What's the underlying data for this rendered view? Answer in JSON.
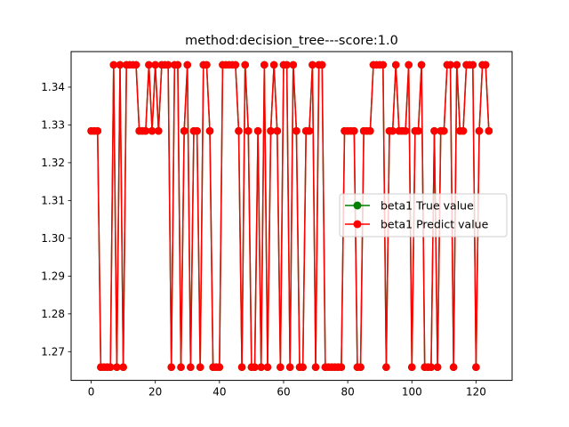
{
  "chart_data": {
    "type": "line",
    "title": "method:decision_tree---score:1.0",
    "xlabel": "",
    "ylabel": "",
    "xlim": [
      -6.25,
      131.25
    ],
    "ylim": [
      1.2624,
      1.3494
    ],
    "xticks": [
      0,
      20,
      40,
      60,
      80,
      100,
      120
    ],
    "yticks": [
      1.27,
      1.28,
      1.29,
      1.3,
      1.31,
      1.32,
      1.33,
      1.34
    ],
    "grid": false,
    "legend_position": "center-right",
    "series": [
      {
        "name": "beta1 True value",
        "color": "#008000",
        "marker": "circle",
        "values": [
          1.3284,
          1.3284,
          1.3284,
          1.2659,
          1.2659,
          1.2659,
          1.2659,
          1.3459,
          1.2659,
          1.3459,
          1.2659,
          1.3459,
          1.3459,
          1.3459,
          1.3459,
          1.3284,
          1.3284,
          1.3284,
          1.3459,
          1.3284,
          1.3459,
          1.3284,
          1.3459,
          1.3459,
          1.3459,
          1.2659,
          1.3459,
          1.3459,
          1.2659,
          1.3284,
          1.3459,
          1.2659,
          1.3284,
          1.3284,
          1.2659,
          1.3459,
          1.3459,
          1.3284,
          1.2659,
          1.2659,
          1.2659,
          1.3459,
          1.3459,
          1.3459,
          1.3459,
          1.3459,
          1.3284,
          1.2659,
          1.3459,
          1.3284,
          1.2659,
          1.2659,
          1.3284,
          1.2659,
          1.3459,
          1.2659,
          1.3284,
          1.3459,
          1.3284,
          1.2659,
          1.3459,
          1.3459,
          1.2659,
          1.3459,
          1.3284,
          1.2659,
          1.2659,
          1.3284,
          1.3284,
          1.3459,
          1.2659,
          1.3459,
          1.3459,
          1.2659,
          1.2659,
          1.2659,
          1.2659,
          1.2659,
          1.2659,
          1.3284,
          1.3284,
          1.3284,
          1.3284,
          1.2659,
          1.2659,
          1.3284,
          1.3284,
          1.3284,
          1.3459,
          1.3459,
          1.3459,
          1.3459,
          1.2659,
          1.3284,
          1.3284,
          1.3459,
          1.3284,
          1.3284,
          1.3284,
          1.3459,
          1.2659,
          1.3284,
          1.3284,
          1.3459,
          1.2659,
          1.2659,
          1.2659,
          1.3284,
          1.2659,
          1.3284,
          1.3284,
          1.3459,
          1.3459,
          1.2659,
          1.3459,
          1.3284,
          1.3284,
          1.3459,
          1.3459,
          1.3459,
          1.2659,
          1.3284,
          1.3459,
          1.3459,
          1.3284
        ]
      },
      {
        "name": "beta1 Predict value",
        "color": "#ff0000",
        "marker": "circle",
        "values": [
          1.3284,
          1.3284,
          1.3284,
          1.2659,
          1.2659,
          1.2659,
          1.2659,
          1.3459,
          1.2659,
          1.3459,
          1.2659,
          1.3459,
          1.3459,
          1.3459,
          1.3459,
          1.3284,
          1.3284,
          1.3284,
          1.3459,
          1.3284,
          1.3459,
          1.3284,
          1.3459,
          1.3459,
          1.3459,
          1.2659,
          1.3459,
          1.3459,
          1.2659,
          1.3284,
          1.3459,
          1.2659,
          1.3284,
          1.3284,
          1.2659,
          1.3459,
          1.3459,
          1.3284,
          1.2659,
          1.2659,
          1.2659,
          1.3459,
          1.3459,
          1.3459,
          1.3459,
          1.3459,
          1.3284,
          1.2659,
          1.3459,
          1.3284,
          1.2659,
          1.2659,
          1.3284,
          1.2659,
          1.3459,
          1.2659,
          1.3284,
          1.3459,
          1.3284,
          1.2659,
          1.3459,
          1.3459,
          1.2659,
          1.3459,
          1.3284,
          1.2659,
          1.2659,
          1.3284,
          1.3284,
          1.3459,
          1.2659,
          1.3459,
          1.3459,
          1.2659,
          1.2659,
          1.2659,
          1.2659,
          1.2659,
          1.2659,
          1.3284,
          1.3284,
          1.3284,
          1.3284,
          1.2659,
          1.2659,
          1.3284,
          1.3284,
          1.3284,
          1.3459,
          1.3459,
          1.3459,
          1.3459,
          1.2659,
          1.3284,
          1.3284,
          1.3459,
          1.3284,
          1.3284,
          1.3284,
          1.3459,
          1.2659,
          1.3284,
          1.3284,
          1.3459,
          1.2659,
          1.2659,
          1.2659,
          1.3284,
          1.2659,
          1.3284,
          1.3284,
          1.3459,
          1.3459,
          1.2659,
          1.3459,
          1.3284,
          1.3284,
          1.3459,
          1.3459,
          1.3459,
          1.2659,
          1.3284,
          1.3459,
          1.3459,
          1.3284
        ]
      }
    ]
  }
}
